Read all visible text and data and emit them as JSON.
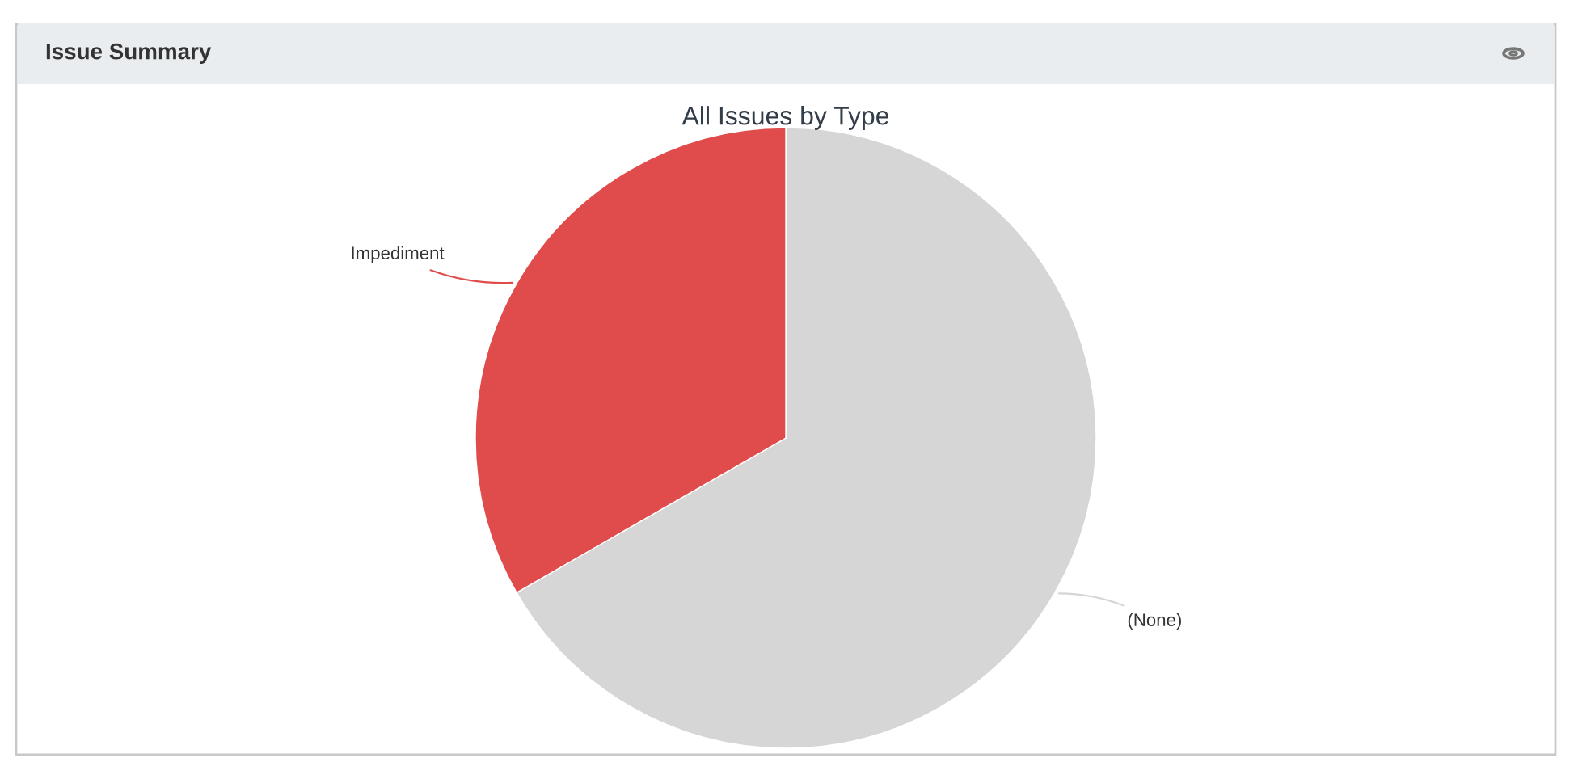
{
  "chart_data": {
    "type": "pie",
    "title": "Issue Summary",
    "subtitle": "All Issues by Type",
    "categories": [
      "(None)",
      "Impediment"
    ],
    "values": [
      66.7,
      33.3
    ],
    "colors": [
      "#d6d6d6",
      "#e04b4b"
    ]
  }
}
